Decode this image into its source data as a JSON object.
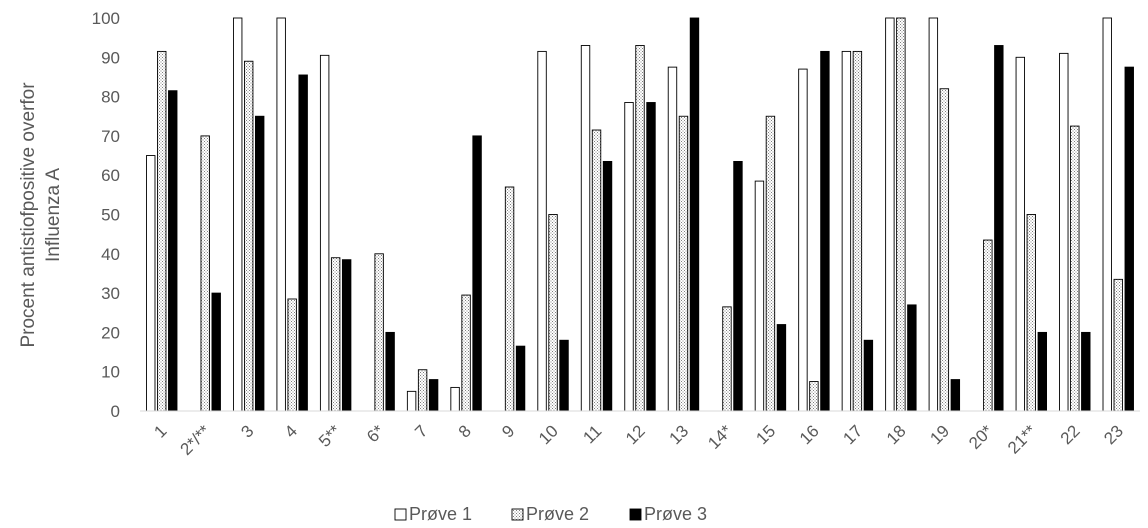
{
  "chart_data": {
    "type": "bar",
    "title": "",
    "xlabel": "",
    "ylabel": [
      "Procent antistiofpositive overfor",
      "Influenza A"
    ],
    "ylim": [
      0,
      100
    ],
    "yticks": [
      0,
      10,
      20,
      30,
      40,
      50,
      60,
      70,
      80,
      90,
      100
    ],
    "grid": false,
    "legend_position": "bottom",
    "categories": [
      "1",
      "2*/**",
      "3",
      "4",
      "5**",
      "6*",
      "7",
      "8",
      "9",
      "10",
      "11",
      "12",
      "13",
      "14*",
      "15",
      "16",
      "17",
      "18",
      "19",
      "20*",
      "21**",
      "22",
      "23"
    ],
    "series": [
      {
        "name": "Prøve 1",
        "fill": "white",
        "values": [
          65,
          null,
          100,
          100,
          90.5,
          null,
          5,
          6,
          null,
          91.5,
          93,
          78.5,
          87.5,
          null,
          58.5,
          87,
          91.5,
          100,
          100,
          null,
          90,
          91,
          100
        ]
      },
      {
        "name": "Prøve 2",
        "fill": "pattern",
        "values": [
          91.5,
          70,
          89,
          28.5,
          39,
          40,
          10.5,
          29.5,
          57,
          50,
          71.5,
          93,
          75,
          26.5,
          75,
          7.5,
          91.5,
          100,
          82,
          43.5,
          50,
          72.5,
          33.5
        ]
      },
      {
        "name": "Prøve 3",
        "fill": "black",
        "values": [
          81.5,
          30,
          75,
          85.5,
          38.5,
          20,
          8,
          70,
          16.5,
          18,
          63.5,
          78.5,
          100,
          63.5,
          22,
          91.5,
          18,
          27,
          8,
          93,
          20,
          20,
          87.5
        ]
      }
    ]
  }
}
